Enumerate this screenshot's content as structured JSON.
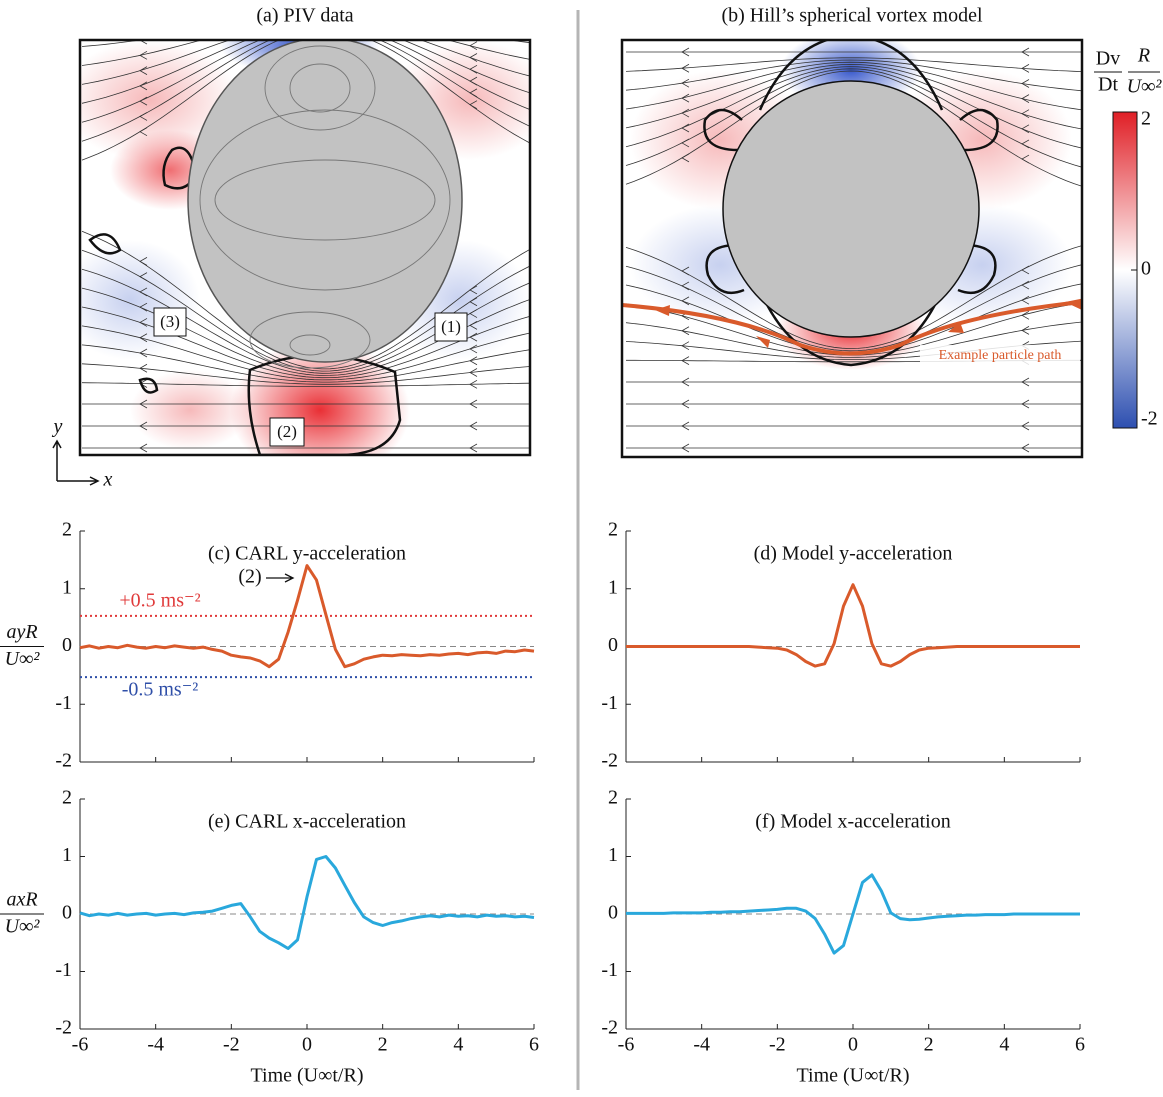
{
  "chart_data": [
    {
      "type": "field",
      "title": "(a) PIV data",
      "annotations": [
        "(1)",
        "(2)",
        "(3)"
      ],
      "axis_labels": {
        "x": "x",
        "y": "y"
      }
    },
    {
      "type": "field",
      "title": "(b) Hill’s spherical vortex model",
      "annotations": [
        "Example particle path"
      ],
      "colorbar": {
        "lim": [
          -2,
          2
        ],
        "ticks": [
          -2,
          0,
          2
        ],
        "label": {
          "numerator": "Dv",
          "denominator": "Dt",
          "numerator2": "R",
          "denominator2": "U∞²"
        }
      }
    },
    {
      "type": "line",
      "title": "(c) CARL y-acceleration",
      "ylabel": {
        "numerator": "ayR",
        "denominator": "U∞²"
      },
      "annotations": [
        "(2)"
      ],
      "xlim": [
        -6,
        6
      ],
      "ylim": [
        -2,
        2
      ],
      "xticks": [
        -6,
        -4,
        -2,
        0,
        2,
        4,
        6
      ],
      "xtick_labels": false,
      "yticks": [
        -2,
        -1,
        0,
        1,
        2
      ],
      "hlines": [
        {
          "value": 0,
          "color": "#888888",
          "style": "dashed"
        },
        {
          "value": 0.53,
          "label": "+0.5 ms⁻²",
          "color": "#e03a3a",
          "style": "dotted"
        },
        {
          "value": -0.53,
          "label": "-0.5 ms⁻²",
          "color": "#2f4fa8",
          "style": "dotted"
        }
      ],
      "x": [
        -6,
        -5.75,
        -5.5,
        -5.25,
        -5,
        -4.75,
        -4.5,
        -4.25,
        -4,
        -3.75,
        -3.5,
        -3.25,
        -3,
        -2.75,
        -2.5,
        -2.25,
        -2,
        -1.75,
        -1.5,
        -1.25,
        -1,
        -0.75,
        -0.5,
        -0.25,
        0,
        0.25,
        0.5,
        0.75,
        1,
        1.25,
        1.5,
        1.75,
        2,
        2.25,
        2.5,
        2.75,
        3,
        3.25,
        3.5,
        3.75,
        4,
        4.25,
        4.5,
        4.75,
        5,
        5.25,
        5.5,
        5.75,
        6
      ],
      "series": [
        {
          "color": "#d95a2b",
          "values": [
            -0.02,
            0.01,
            -0.03,
            0.0,
            -0.02,
            0.02,
            -0.01,
            -0.03,
            0.0,
            -0.02,
            0.01,
            -0.01,
            -0.03,
            -0.01,
            -0.05,
            -0.08,
            -0.15,
            -0.18,
            -0.2,
            -0.25,
            -0.35,
            -0.22,
            0.25,
            0.8,
            1.4,
            1.15,
            0.55,
            -0.05,
            -0.35,
            -0.3,
            -0.22,
            -0.18,
            -0.15,
            -0.16,
            -0.14,
            -0.15,
            -0.16,
            -0.14,
            -0.15,
            -0.13,
            -0.12,
            -0.14,
            -0.11,
            -0.1,
            -0.12,
            -0.08,
            -0.09,
            -0.06,
            -0.08
          ]
        }
      ]
    },
    {
      "type": "line",
      "title": "(d) Model y-acceleration",
      "xlim": [
        -6,
        6
      ],
      "ylim": [
        -2,
        2
      ],
      "xticks": [
        -6,
        -4,
        -2,
        0,
        2,
        4,
        6
      ],
      "xtick_labels": false,
      "yticks": [
        -2,
        -1,
        0,
        1,
        2
      ],
      "hlines": [
        {
          "value": 0,
          "color": "#888888",
          "style": "dashed"
        }
      ],
      "x": [
        -6,
        -5.75,
        -5.5,
        -5.25,
        -5,
        -4.75,
        -4.5,
        -4.25,
        -4,
        -3.75,
        -3.5,
        -3.25,
        -3,
        -2.75,
        -2.5,
        -2.25,
        -2,
        -1.75,
        -1.5,
        -1.25,
        -1,
        -0.75,
        -0.5,
        -0.25,
        0,
        0.25,
        0.5,
        0.75,
        1,
        1.25,
        1.5,
        1.75,
        2,
        2.25,
        2.5,
        2.75,
        3,
        3.25,
        3.5,
        3.75,
        4,
        4.25,
        4.5,
        4.75,
        5,
        5.25,
        5.5,
        5.75,
        6
      ],
      "series": [
        {
          "color": "#d95a2b",
          "values": [
            0,
            0,
            0,
            0,
            0,
            0,
            0,
            0,
            0,
            0,
            0,
            0,
            0,
            0,
            -0.01,
            -0.02,
            -0.03,
            -0.06,
            -0.14,
            -0.26,
            -0.34,
            -0.3,
            0.05,
            0.7,
            1.07,
            0.7,
            0.05,
            -0.3,
            -0.34,
            -0.26,
            -0.14,
            -0.06,
            -0.03,
            -0.02,
            -0.01,
            0,
            0,
            0,
            0,
            0,
            0,
            0,
            0,
            0,
            0,
            0,
            0,
            0,
            0
          ]
        }
      ]
    },
    {
      "type": "line",
      "title": "(e) CARL x-acceleration",
      "ylabel": {
        "numerator": "axR",
        "denominator": "U∞²"
      },
      "xlabel": "Time  (U∞t/R)",
      "xlim": [
        -6,
        6
      ],
      "ylim": [
        -2,
        2
      ],
      "xticks": [
        -6,
        -4,
        -2,
        0,
        2,
        4,
        6
      ],
      "xtick_labels": true,
      "yticks": [
        -2,
        -1,
        0,
        1,
        2
      ],
      "hlines": [
        {
          "value": 0,
          "color": "#888888",
          "style": "dashed"
        }
      ],
      "x": [
        -6,
        -5.75,
        -5.5,
        -5.25,
        -5,
        -4.75,
        -4.5,
        -4.25,
        -4,
        -3.75,
        -3.5,
        -3.25,
        -3,
        -2.75,
        -2.5,
        -2.25,
        -2,
        -1.75,
        -1.5,
        -1.25,
        -1,
        -0.75,
        -0.5,
        -0.25,
        0,
        0.25,
        0.5,
        0.75,
        1,
        1.25,
        1.5,
        1.75,
        2,
        2.25,
        2.5,
        2.75,
        3,
        3.25,
        3.5,
        3.75,
        4,
        4.25,
        4.5,
        4.75,
        5,
        5.25,
        5.5,
        5.75,
        6
      ],
      "series": [
        {
          "color": "#29a8dc",
          "values": [
            0.02,
            -0.03,
            0.0,
            -0.02,
            0.01,
            -0.02,
            0.0,
            0.01,
            -0.02,
            0.0,
            0.01,
            -0.01,
            0.02,
            0.03,
            0.05,
            0.1,
            0.15,
            0.18,
            -0.05,
            -0.3,
            -0.42,
            -0.5,
            -0.6,
            -0.45,
            0.3,
            0.95,
            1.0,
            0.8,
            0.5,
            0.2,
            -0.05,
            -0.15,
            -0.2,
            -0.15,
            -0.12,
            -0.08,
            -0.05,
            -0.03,
            -0.05,
            -0.02,
            -0.04,
            -0.03,
            -0.05,
            -0.02,
            -0.04,
            -0.03,
            -0.05,
            -0.04,
            -0.06
          ]
        }
      ]
    },
    {
      "type": "line",
      "title": "(f) Model x-acceleration",
      "xlabel": "Time  (U∞t/R)",
      "xlim": [
        -6,
        6
      ],
      "ylim": [
        -2,
        2
      ],
      "xticks": [
        -6,
        -4,
        -2,
        0,
        2,
        4,
        6
      ],
      "xtick_labels": true,
      "yticks": [
        -2,
        -1,
        0,
        1,
        2
      ],
      "hlines": [
        {
          "value": 0,
          "color": "#888888",
          "style": "dashed"
        }
      ],
      "x": [
        -6,
        -5.75,
        -5.5,
        -5.25,
        -5,
        -4.75,
        -4.5,
        -4.25,
        -4,
        -3.75,
        -3.5,
        -3.25,
        -3,
        -2.75,
        -2.5,
        -2.25,
        -2,
        -1.75,
        -1.5,
        -1.25,
        -1,
        -0.75,
        -0.5,
        -0.25,
        0,
        0.25,
        0.5,
        0.75,
        1,
        1.25,
        1.5,
        1.75,
        2,
        2.25,
        2.5,
        2.75,
        3,
        3.25,
        3.5,
        3.75,
        4,
        4.25,
        4.5,
        4.75,
        5,
        5.25,
        5.5,
        5.75,
        6
      ],
      "series": [
        {
          "color": "#29a8dc",
          "values": [
            0.01,
            0.01,
            0.01,
            0.01,
            0.01,
            0.02,
            0.02,
            0.02,
            0.02,
            0.03,
            0.03,
            0.04,
            0.04,
            0.05,
            0.06,
            0.07,
            0.08,
            0.1,
            0.1,
            0.05,
            -0.08,
            -0.35,
            -0.68,
            -0.55,
            0,
            0.55,
            0.68,
            0.4,
            0.02,
            -0.08,
            -0.1,
            -0.09,
            -0.07,
            -0.05,
            -0.04,
            -0.03,
            -0.02,
            -0.02,
            -0.01,
            -0.01,
            -0.01,
            0,
            0,
            0,
            0,
            0,
            0,
            0,
            0
          ]
        }
      ]
    }
  ]
}
